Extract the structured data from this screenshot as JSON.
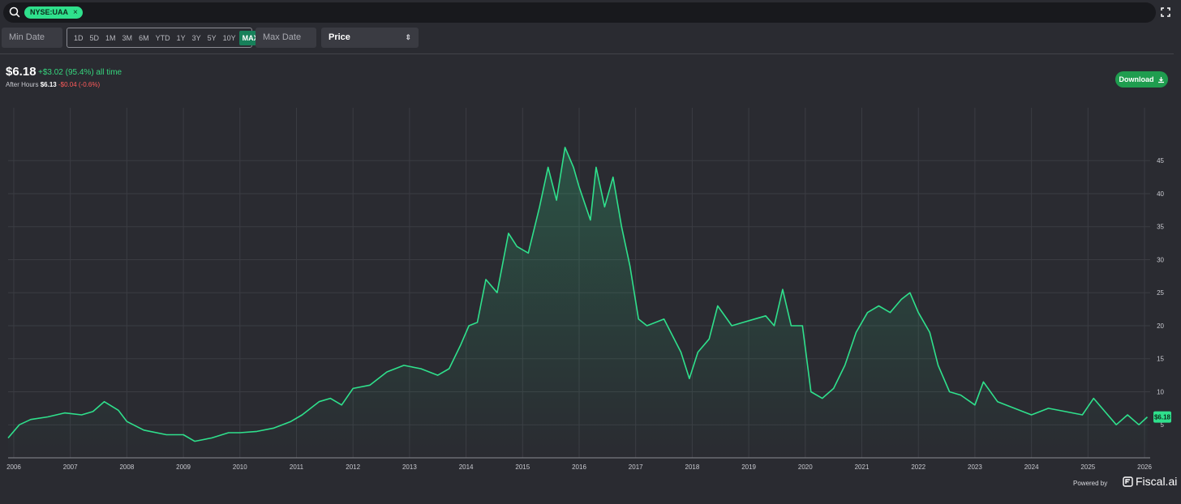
{
  "search": {
    "ticker": "NYSE:UAA",
    "chip_close": "×"
  },
  "controls": {
    "min_date_placeholder": "Min Date",
    "max_date_placeholder": "Max Date",
    "ranges": [
      "1D",
      "5D",
      "1M",
      "3M",
      "6M",
      "YTD",
      "1Y",
      "3Y",
      "5Y",
      "10Y",
      "MAX"
    ],
    "active_range": "MAX",
    "metric": "Price"
  },
  "summary": {
    "price": "$6.18",
    "change": "+$3.02 (95.4%) all time",
    "after_hours_label": "After Hours",
    "after_hours_price": "$6.13",
    "after_hours_change": "-$0.04 (-0.6%)"
  },
  "download_label": "Download",
  "footer": {
    "powered_by": "Powered by",
    "brand": "Fiscal.ai"
  },
  "colors": {
    "line": "#2fe08c",
    "accent": "#1f9d4f",
    "negative": "#ff5b5b",
    "background": "#2a2b31"
  },
  "chart_data": {
    "type": "area",
    "x_ticks": [
      "2006",
      "2007",
      "2008",
      "2009",
      "2010",
      "2011",
      "2012",
      "2013",
      "2014",
      "2015",
      "2016",
      "2017",
      "2018",
      "2019",
      "2020",
      "2021",
      "2022",
      "2023",
      "2024",
      "2025",
      "2026"
    ],
    "y_ticks": [
      5,
      10,
      15,
      20,
      25,
      30,
      35,
      40,
      45
    ],
    "xlim": [
      2005.9,
      2026.1
    ],
    "ylim": [
      0,
      53
    ],
    "grid": true,
    "last_value_label": "$6.18",
    "series": [
      {
        "x": [
          2005.9,
          2006.1,
          2006.3,
          2006.6,
          2006.9,
          2007.2,
          2007.4,
          2007.6,
          2007.85,
          2008.0,
          2008.3,
          2008.7,
          2009.0,
          2009.2,
          2009.5,
          2009.8,
          2010.0,
          2010.3,
          2010.6,
          2010.9,
          2011.1,
          2011.4,
          2011.6,
          2011.8,
          2012.0,
          2012.3,
          2012.6,
          2012.9,
          2013.2,
          2013.5,
          2013.7,
          2013.9,
          2014.05,
          2014.2,
          2014.35,
          2014.55,
          2014.75,
          2014.9,
          2015.1,
          2015.3,
          2015.45,
          2015.6,
          2015.75,
          2015.9,
          2016.0,
          2016.2,
          2016.3,
          2016.45,
          2016.6,
          2016.75,
          2016.9,
          2017.05,
          2017.2,
          2017.5,
          2017.8,
          2017.95,
          2018.1,
          2018.3,
          2018.45,
          2018.7,
          2018.9,
          2019.1,
          2019.3,
          2019.45,
          2019.6,
          2019.75,
          2019.95,
          2020.1,
          2020.3,
          2020.5,
          2020.7,
          2020.9,
          2021.1,
          2021.3,
          2021.5,
          2021.7,
          2021.85,
          2022.0,
          2022.2,
          2022.35,
          2022.55,
          2022.75,
          2023.0,
          2023.15,
          2023.4,
          2023.7,
          2024.0,
          2024.3,
          2024.6,
          2024.9,
          2025.1,
          2025.3,
          2025.5,
          2025.7,
          2025.9,
          2026.05
        ],
        "y": [
          3.0,
          5.0,
          5.8,
          6.2,
          6.8,
          6.5,
          7.0,
          8.5,
          7.2,
          5.5,
          4.2,
          3.5,
          3.5,
          2.5,
          3.0,
          3.8,
          3.8,
          4.0,
          4.5,
          5.5,
          6.5,
          8.5,
          9.0,
          8.0,
          10.5,
          11.0,
          13.0,
          14.0,
          13.5,
          12.5,
          13.5,
          17.0,
          20.0,
          20.5,
          27.0,
          25.0,
          34.0,
          32.0,
          31.0,
          38.0,
          44.0,
          39.0,
          47.0,
          44.0,
          41.0,
          36.0,
          44.0,
          38.0,
          42.5,
          35.0,
          29.0,
          21.0,
          20.0,
          21.0,
          16.0,
          12.0,
          16.0,
          18.0,
          23.0,
          20.0,
          20.5,
          21.0,
          21.5,
          20.0,
          25.5,
          20.0,
          20.0,
          10.0,
          9.0,
          10.5,
          14.0,
          19.0,
          22.0,
          23.0,
          22.0,
          24.0,
          25.0,
          22.0,
          19.0,
          14.0,
          10.0,
          9.5,
          8.0,
          11.5,
          8.5,
          7.5,
          6.5,
          7.5,
          7.0,
          6.5,
          9.0,
          7.0,
          5.0,
          6.5,
          5.0,
          6.18
        ]
      }
    ]
  }
}
